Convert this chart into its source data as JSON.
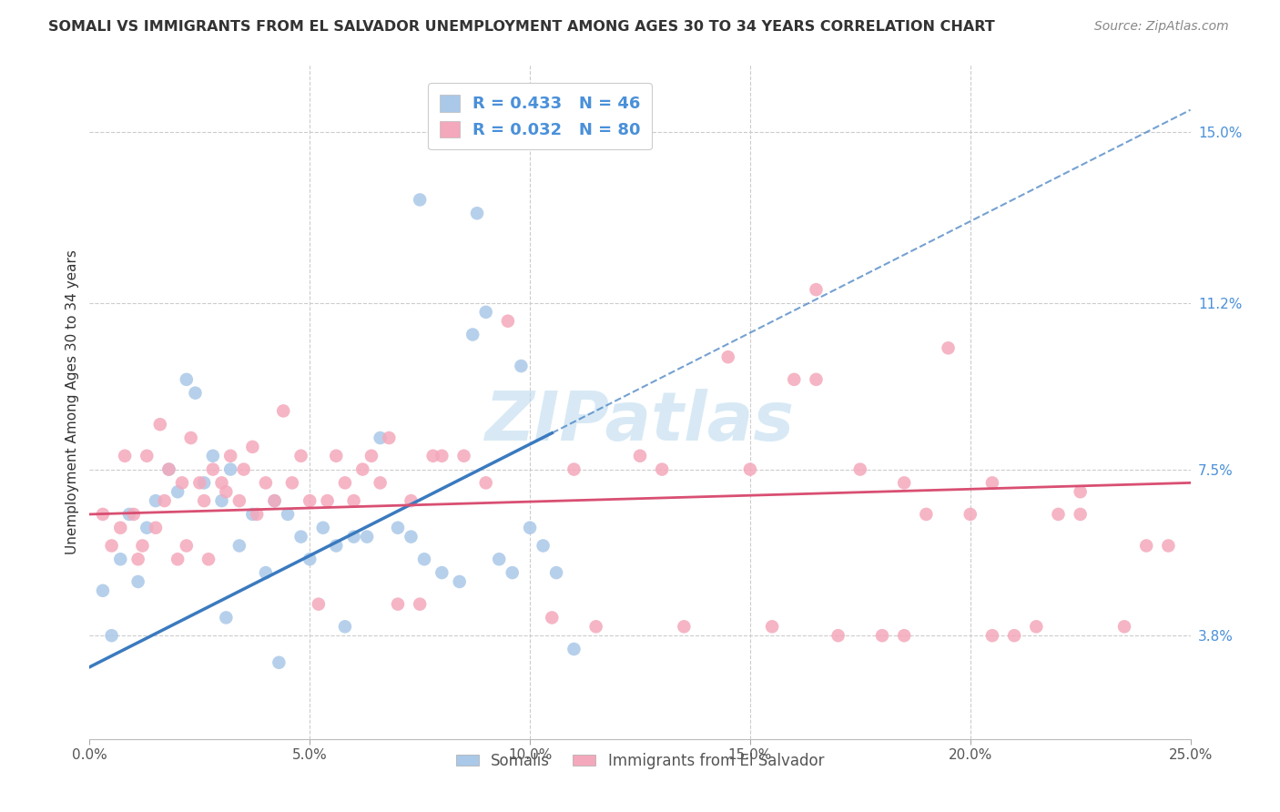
{
  "title": "SOMALI VS IMMIGRANTS FROM EL SALVADOR UNEMPLOYMENT AMONG AGES 30 TO 34 YEARS CORRELATION CHART",
  "source": "Source: ZipAtlas.com",
  "xlabel_ticks": [
    "0.0%",
    "5.0%",
    "10.0%",
    "15.0%",
    "20.0%",
    "25.0%"
  ],
  "xlabel_vals": [
    0.0,
    5.0,
    10.0,
    15.0,
    20.0,
    25.0
  ],
  "ylabel": "Unemployment Among Ages 30 to 34 years",
  "ylabel_ticks_labels": [
    "3.8%",
    "7.5%",
    "11.2%",
    "15.0%"
  ],
  "ylabel_ticks_vals": [
    3.8,
    7.5,
    11.2,
    15.0
  ],
  "xlim": [
    0.0,
    25.0
  ],
  "ylim": [
    1.5,
    16.5
  ],
  "somali_R": 0.433,
  "somali_N": 46,
  "salvador_R": 0.032,
  "salvador_N": 80,
  "somali_color": "#aac8e8",
  "salvador_color": "#f4a8bb",
  "trend_somali_color": "#3a7abf",
  "trend_salvador_color": "#d94f72",
  "legend_label_somali": "Somalis",
  "legend_label_salvador": "Immigrants from El Salvador",
  "watermark": "ZIPatlas",
  "somali_trend_x0": 0.0,
  "somali_trend_y0": 3.1,
  "somali_trend_x1": 25.0,
  "somali_trend_y1": 15.5,
  "somali_solid_x1": 10.5,
  "salvador_trend_x0": 0.0,
  "salvador_trend_y0": 6.5,
  "salvador_trend_x1": 25.0,
  "salvador_trend_y1": 7.2,
  "somali_x": [
    0.3,
    0.5,
    0.7,
    0.9,
    1.1,
    1.3,
    1.5,
    1.8,
    2.0,
    2.2,
    2.4,
    2.6,
    2.8,
    3.0,
    3.2,
    3.4,
    3.7,
    4.0,
    4.2,
    4.5,
    4.8,
    5.0,
    5.3,
    5.6,
    6.0,
    6.3,
    6.6,
    7.0,
    7.3,
    7.6,
    8.0,
    8.4,
    8.7,
    9.0,
    9.3,
    9.6,
    10.0,
    10.3,
    10.6,
    3.1,
    4.3,
    5.8,
    7.5,
    8.8,
    9.8,
    11.0
  ],
  "somali_y": [
    4.8,
    3.8,
    5.5,
    6.5,
    5.0,
    6.2,
    6.8,
    7.5,
    7.0,
    9.5,
    9.2,
    7.2,
    7.8,
    6.8,
    7.5,
    5.8,
    6.5,
    5.2,
    6.8,
    6.5,
    6.0,
    5.5,
    6.2,
    5.8,
    6.0,
    6.0,
    8.2,
    6.2,
    6.0,
    5.5,
    5.2,
    5.0,
    10.5,
    11.0,
    5.5,
    5.2,
    6.2,
    5.8,
    5.2,
    4.2,
    3.2,
    4.0,
    13.5,
    13.2,
    9.8,
    3.5
  ],
  "salvador_x": [
    0.3,
    0.5,
    0.7,
    0.8,
    1.0,
    1.1,
    1.2,
    1.3,
    1.5,
    1.6,
    1.7,
    1.8,
    2.0,
    2.1,
    2.2,
    2.3,
    2.5,
    2.6,
    2.7,
    2.8,
    3.0,
    3.1,
    3.2,
    3.4,
    3.5,
    3.7,
    3.8,
    4.0,
    4.2,
    4.4,
    4.6,
    4.8,
    5.0,
    5.2,
    5.4,
    5.6,
    5.8,
    6.0,
    6.2,
    6.4,
    6.6,
    6.8,
    7.0,
    7.3,
    7.5,
    7.8,
    8.0,
    8.5,
    9.5,
    10.5,
    11.5,
    12.5,
    13.5,
    14.5,
    15.5,
    16.5,
    17.5,
    18.5,
    19.5,
    20.5,
    21.5,
    22.5,
    23.5,
    24.5,
    9.0,
    11.0,
    13.0,
    15.0,
    17.0,
    19.0,
    21.0,
    16.0,
    18.0,
    20.0,
    22.0,
    16.5,
    18.5,
    20.5,
    22.5,
    24.0
  ],
  "salvador_y": [
    6.5,
    5.8,
    6.2,
    7.8,
    6.5,
    5.5,
    5.8,
    7.8,
    6.2,
    8.5,
    6.8,
    7.5,
    5.5,
    7.2,
    5.8,
    8.2,
    7.2,
    6.8,
    5.5,
    7.5,
    7.2,
    7.0,
    7.8,
    6.8,
    7.5,
    8.0,
    6.5,
    7.2,
    6.8,
    8.8,
    7.2,
    7.8,
    6.8,
    4.5,
    6.8,
    7.8,
    7.2,
    6.8,
    7.5,
    7.8,
    7.2,
    8.2,
    4.5,
    6.8,
    4.5,
    7.8,
    7.8,
    7.8,
    10.8,
    4.2,
    4.0,
    7.8,
    4.0,
    10.0,
    4.0,
    11.5,
    7.5,
    3.8,
    10.2,
    7.2,
    4.0,
    7.0,
    4.0,
    5.8,
    7.2,
    7.5,
    7.5,
    7.5,
    3.8,
    6.5,
    3.8,
    9.5,
    3.8,
    6.5,
    6.5,
    9.5,
    7.2,
    3.8,
    6.5,
    5.8
  ]
}
